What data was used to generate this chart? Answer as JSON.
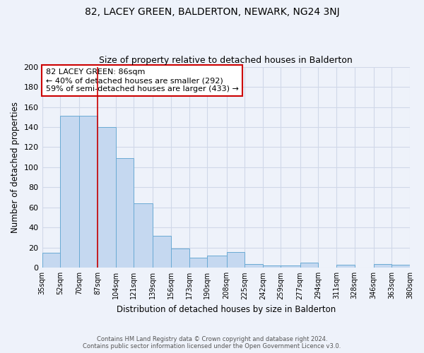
{
  "title": "82, LACEY GREEN, BALDERTON, NEWARK, NG24 3NJ",
  "subtitle": "Size of property relative to detached houses in Balderton",
  "xlabel": "Distribution of detached houses by size in Balderton",
  "ylabel": "Number of detached properties",
  "bin_labels": [
    "35sqm",
    "52sqm",
    "70sqm",
    "87sqm",
    "104sqm",
    "121sqm",
    "139sqm",
    "156sqm",
    "173sqm",
    "190sqm",
    "208sqm",
    "225sqm",
    "242sqm",
    "259sqm",
    "277sqm",
    "294sqm",
    "311sqm",
    "328sqm",
    "346sqm",
    "363sqm",
    "380sqm"
  ],
  "bin_edges": [
    35,
    52,
    70,
    87,
    104,
    121,
    139,
    156,
    173,
    190,
    208,
    225,
    242,
    259,
    277,
    294,
    311,
    328,
    346,
    363,
    380
  ],
  "bar_heights": [
    15,
    151,
    151,
    140,
    109,
    64,
    32,
    19,
    10,
    12,
    16,
    4,
    2,
    2,
    5,
    0,
    3,
    0,
    4,
    3
  ],
  "bar_color": "#c5d8f0",
  "bar_edge_color": "#6aaad4",
  "background_color": "#eef2fa",
  "grid_color": "#d0d8e8",
  "ylim": [
    0,
    200
  ],
  "yticks": [
    0,
    20,
    40,
    60,
    80,
    100,
    120,
    140,
    160,
    180,
    200
  ],
  "vline_x": 87,
  "annotation_title": "82 LACEY GREEN: 86sqm",
  "annotation_line1": "← 40% of detached houses are smaller (292)",
  "annotation_line2": "59% of semi-detached houses are larger (433) →",
  "annotation_box_color": "#ffffff",
  "annotation_box_edge_color": "#cc0000",
  "vline_color": "#cc0000",
  "footer_line1": "Contains HM Land Registry data © Crown copyright and database right 2024.",
  "footer_line2": "Contains public sector information licensed under the Open Government Licence v3.0."
}
